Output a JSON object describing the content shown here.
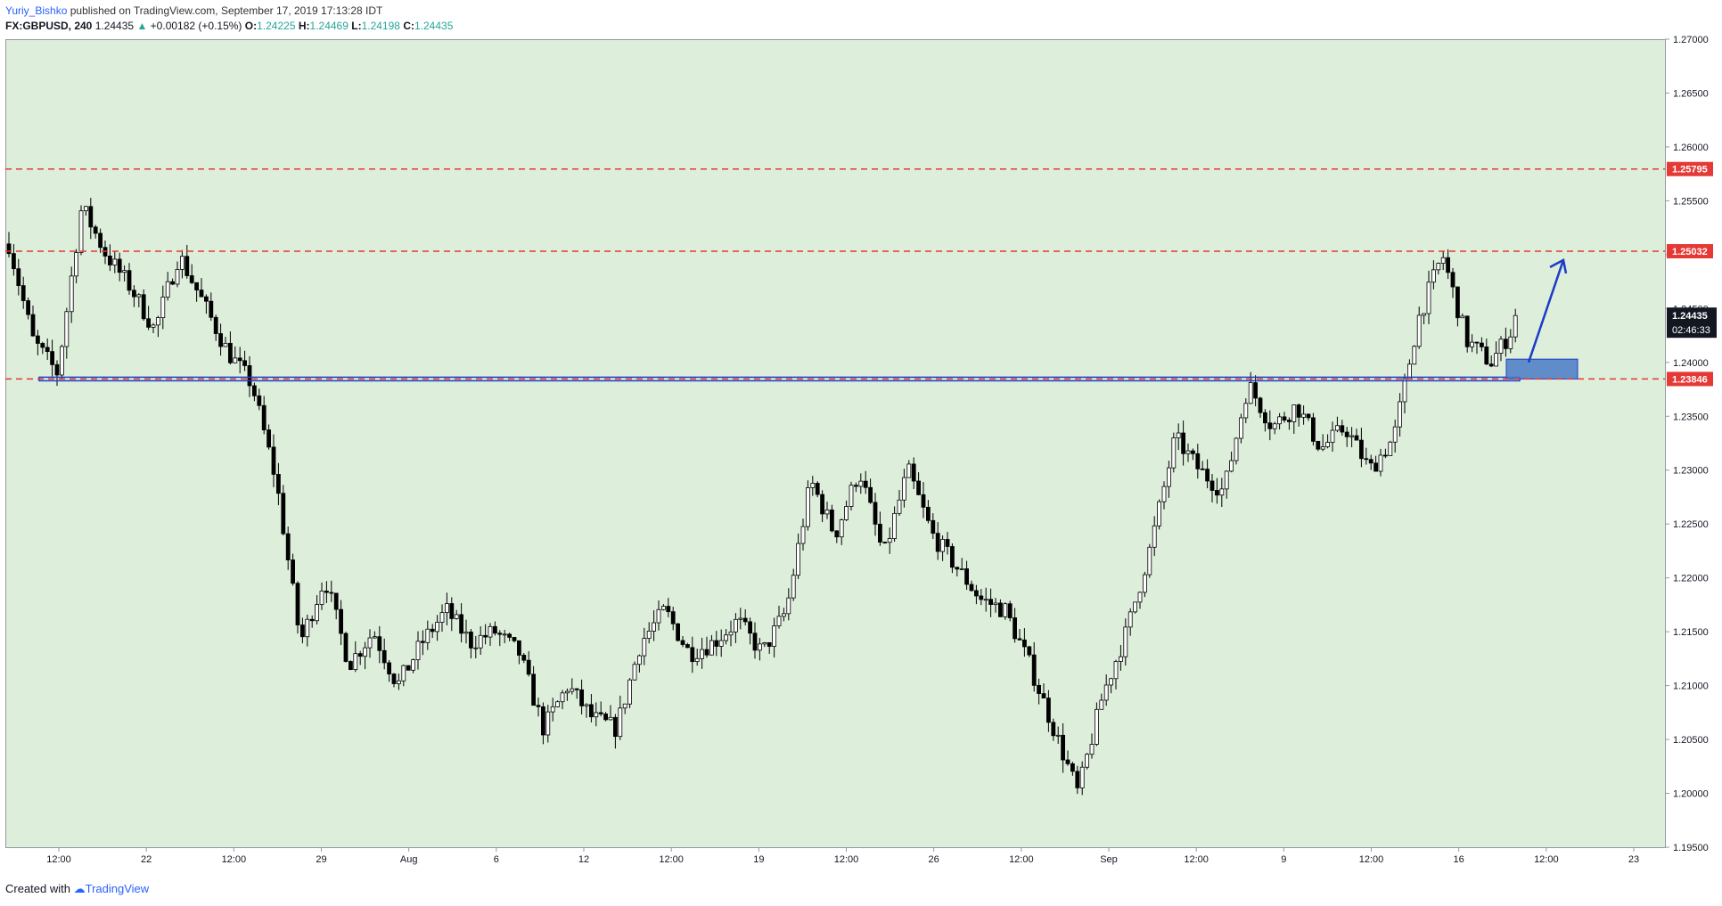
{
  "header": {
    "author": "Yuriy_Bishko",
    "published": "published on TradingView.com, September 17, 2019 17:13:28 IDT"
  },
  "ticker": {
    "symbol": "FX:GBPUSD, 240",
    "last": "1.24435",
    "arrow": "▲",
    "change": "+0.00182 (+0.15%)",
    "o_label": "O:",
    "o": "1.24225",
    "h_label": "H:",
    "h": "1.24469",
    "l_label": "L:",
    "l": "1.24198",
    "c_label": "C:",
    "c": "1.24435"
  },
  "footer": {
    "created": "Created with",
    "brand": "TradingView"
  },
  "colors": {
    "plot_bg": "#ddeedb",
    "red_level": "#e53935",
    "blue": "#1a3cc8",
    "zone": "#4a7bc7",
    "price_box": "#131722"
  },
  "chart_data": {
    "type": "candlestick",
    "symbol": "GBPUSD",
    "timeframe": "240",
    "ylim": [
      1.195,
      1.27
    ],
    "y_ticks": [
      "1.27000",
      "1.26500",
      "1.26000",
      "1.25500",
      "1.25000",
      "1.24500",
      "1.24000",
      "1.23500",
      "1.23000",
      "1.22500",
      "1.22000",
      "1.21500",
      "1.21000",
      "1.20500",
      "1.20000",
      "1.19500"
    ],
    "x_ticks": [
      "12:00",
      "22",
      "12:00",
      "29",
      "Aug",
      "6",
      "12",
      "12:00",
      "19",
      "12:00",
      "26",
      "12:00",
      "Sep",
      "12:00",
      "9",
      "12:00",
      "16",
      "12:00",
      "23"
    ],
    "levels": [
      {
        "label": "1.25795",
        "value": 1.25795
      },
      {
        "label": "1.25032",
        "value": 1.25032
      },
      {
        "label": "1.23846",
        "value": 1.23846
      }
    ],
    "last_price": {
      "label": "1.24435",
      "timer": "02:46:33"
    },
    "path": [
      1.251,
      1.242,
      1.239,
      1.2545,
      1.25,
      1.247,
      1.243,
      1.25,
      1.2455,
      1.241,
      1.238,
      1.229,
      1.214,
      1.22,
      1.212,
      1.215,
      1.21,
      1.214,
      1.217,
      1.214,
      1.215,
      1.213,
      1.206,
      1.21,
      1.207,
      1.206,
      1.214,
      1.217,
      1.213,
      1.214,
      1.216,
      1.213,
      1.217,
      1.229,
      1.224,
      1.23,
      1.222,
      1.23,
      1.224,
      1.221,
      1.218,
      1.217,
      1.212,
      1.206,
      1.2,
      1.209,
      1.215,
      1.223,
      1.233,
      1.23,
      1.228,
      1.238,
      1.234,
      1.236,
      1.232,
      1.234,
      1.23,
      1.233,
      1.244,
      1.25,
      1.242,
      1.24,
      1.2435
    ]
  }
}
